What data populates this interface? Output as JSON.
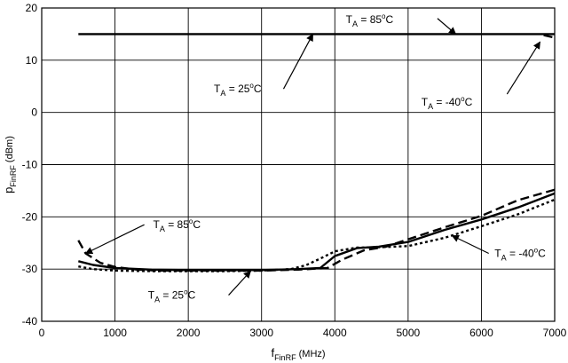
{
  "chart_data": {
    "type": "line",
    "xlabel": {
      "main": "f",
      "sub": "FinRF",
      "unit": " (MHz)"
    },
    "ylabel": {
      "main": "p",
      "sub": "FinRF",
      "unit": " (dBm)"
    },
    "xlim": [
      0,
      7000
    ],
    "ylim": [
      -40,
      20
    ],
    "xticks": [
      0,
      1000,
      2000,
      3000,
      4000,
      5000,
      6000,
      7000
    ],
    "yticks": [
      -40,
      -30,
      -20,
      -10,
      0,
      10,
      20
    ],
    "xtick_labels": [
      "0",
      "1000",
      "2000",
      "3000",
      "4000",
      "5000",
      "6000",
      "7000"
    ],
    "ytick_labels": [
      "-40",
      "-30",
      "-20",
      "-10",
      "0",
      "10",
      "20"
    ],
    "grid": true,
    "series": [
      {
        "group": "upper",
        "style": "solid",
        "x": [
          500,
          7000
        ],
        "y": [
          15,
          15
        ]
      },
      {
        "group": "upper",
        "style": "dashed",
        "x": [
          6850,
          7000
        ],
        "y": [
          14.8,
          14.3
        ]
      },
      {
        "group": "lower",
        "style": "solid",
        "x": [
          500,
          700,
          1000,
          1500,
          2000,
          2500,
          3000,
          3500,
          3800,
          4000,
          4300,
          4600,
          5000,
          5500,
          6000,
          6500,
          7000
        ],
        "y": [
          -28.5,
          -29.2,
          -29.8,
          -30.1,
          -30.2,
          -30.2,
          -30.2,
          -30.0,
          -29.8,
          -27.5,
          -26.0,
          -25.7,
          -24.8,
          -22.5,
          -20.5,
          -18.2,
          -15.5
        ]
      },
      {
        "group": "lower",
        "style": "dashed",
        "x": [
          500,
          600,
          800,
          1000,
          1300,
          1600,
          2000,
          2500,
          3000,
          3500,
          3900,
          4100,
          4400,
          4700,
          5000,
          5500,
          6000,
          6500,
          7000
        ],
        "y": [
          -24.5,
          -27.0,
          -28.8,
          -29.6,
          -30.1,
          -30.3,
          -30.3,
          -30.3,
          -30.3,
          -30.1,
          -29.8,
          -28.2,
          -26.4,
          -25.7,
          -24.3,
          -22.0,
          -19.8,
          -16.8,
          -14.8
        ]
      },
      {
        "group": "lower",
        "style": "dotted",
        "x": [
          500,
          700,
          1000,
          1500,
          2000,
          2500,
          3000,
          3400,
          3600,
          3800,
          4000,
          4300,
          4600,
          5000,
          5500,
          6000,
          6500,
          7000
        ],
        "y": [
          -29.5,
          -30.0,
          -30.3,
          -30.4,
          -30.4,
          -30.4,
          -30.3,
          -30.0,
          -29.3,
          -28.0,
          -26.6,
          -25.9,
          -25.8,
          -25.6,
          -24.0,
          -21.8,
          -19.5,
          -16.7
        ]
      }
    ],
    "annotations": [
      {
        "id": "ann-85-upper",
        "text_main": "T",
        "text_sub": "A",
        "text_rest": " = 85",
        "text_sup": "o",
        "text_unit": "C",
        "tx": 4150,
        "ty": 17.8,
        "arrow_from": [
          5400,
          18.0
        ],
        "arrow_to": [
          5650,
          15.0
        ]
      },
      {
        "id": "ann-25-upper",
        "text_main": "T",
        "text_sub": "A",
        "text_rest": " = 25",
        "text_sup": "o",
        "text_unit": "C",
        "tx": 2350,
        "ty": 4.5,
        "arrow_from": [
          3300,
          4.5
        ],
        "arrow_to": [
          3700,
          15.0
        ]
      },
      {
        "id": "ann-m40-upper",
        "text_main": "T",
        "text_sub": "A",
        "text_rest": " = -40",
        "text_sup": "o",
        "text_unit": "C",
        "tx": 5180,
        "ty": 2.0,
        "arrow_from": [
          6350,
          3.5
        ],
        "arrow_to": [
          6800,
          13.5
        ]
      },
      {
        "id": "ann-85-lower",
        "text_main": "T",
        "text_sub": "A",
        "text_rest": " = 85",
        "text_sup": "o",
        "text_unit": "C",
        "tx": 1520,
        "ty": -21.5,
        "arrow_from": [
          1400,
          -21.5
        ],
        "arrow_to": [
          600,
          -27.0
        ]
      },
      {
        "id": "ann-25-lower",
        "text_main": "T",
        "text_sub": "A",
        "text_rest": " = 25",
        "text_sup": "o",
        "text_unit": "C",
        "tx": 1450,
        "ty": -35.0,
        "arrow_from": [
          2550,
          -35.0
        ],
        "arrow_to": [
          2850,
          -30.4
        ]
      },
      {
        "id": "ann-m40-lower",
        "text_main": "T",
        "text_sub": "A",
        "text_rest": " = -40",
        "text_sup": "o",
        "text_unit": "C",
        "tx": 6180,
        "ty": -27.0,
        "arrow_from": [
          6100,
          -27.0
        ],
        "arrow_to": [
          5600,
          -23.6
        ]
      }
    ]
  }
}
